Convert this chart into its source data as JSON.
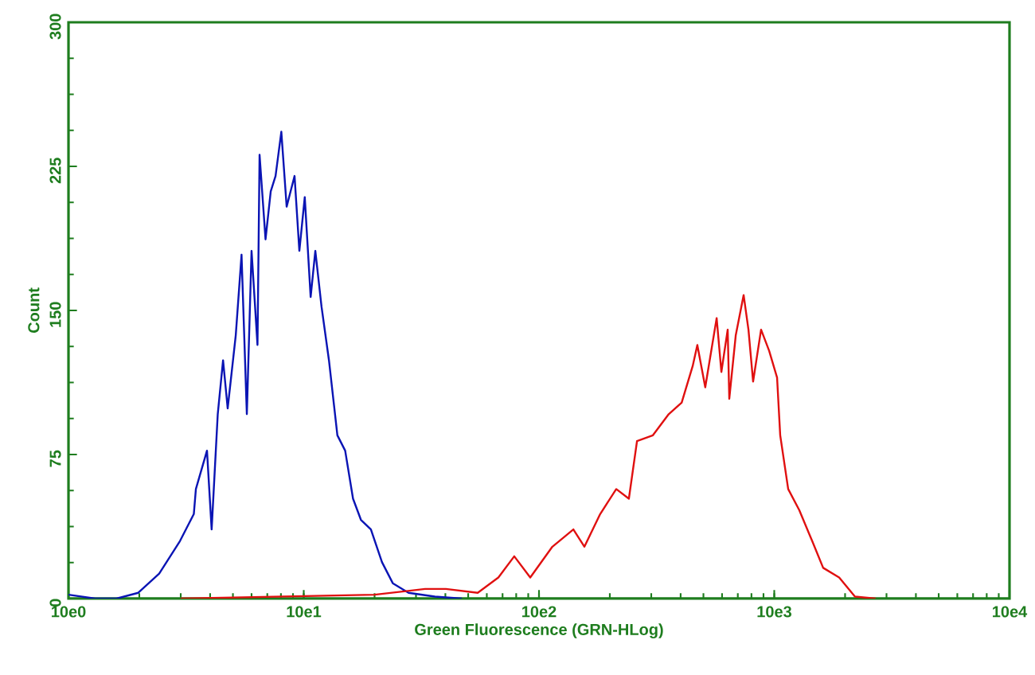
{
  "chart_data": {
    "type": "line",
    "xlabel": "Green Fluorescence (GRN-HLog)",
    "ylabel": "Count",
    "log": "x",
    "xlim": [
      10,
      100000
    ],
    "ylim": [
      0,
      300
    ],
    "xticks": [
      {
        "value": 10,
        "label": "10e0"
      },
      {
        "value": 100,
        "label": "10e1"
      },
      {
        "value": 1000,
        "label": "10e2"
      },
      {
        "value": 10000,
        "label": "10e3"
      },
      {
        "value": 100000,
        "label": "10e4"
      }
    ],
    "yticks": [
      0,
      75,
      150,
      225,
      300
    ],
    "series": [
      {
        "color": "#0a14b4",
        "x": [
          10,
          13,
          16,
          19.8,
          24.3,
          29.8,
          34.1,
          34.8,
          38.8,
          40.6,
          43.1,
          45.4,
          47.5,
          51.4,
          54.4,
          57.3,
          60.0,
          63.6,
          64.9,
          68.8,
          72.4,
          75.9,
          80.3,
          84.6,
          91.4,
          95.8,
          101,
          107,
          112,
          119,
          128,
          139,
          150,
          162,
          175,
          193,
          215,
          239,
          279,
          361,
          470
        ],
        "values": [
          2,
          0,
          0,
          3,
          13,
          30,
          44,
          57,
          77,
          36,
          96,
          124,
          99,
          137,
          179,
          96,
          181,
          132,
          231,
          187,
          212,
          220,
          243,
          204,
          220,
          181,
          209,
          157,
          181,
          152,
          124,
          85,
          77,
          52,
          41,
          36,
          19,
          8,
          3,
          1,
          0
        ]
      },
      {
        "color": "#e01010",
        "x": [
          30,
          200,
          328,
          402,
          549,
          672,
          785,
          918,
          1140,
          1400,
          1560,
          1820,
          2130,
          2410,
          2610,
          3050,
          3560,
          4040,
          4500,
          4710,
          5090,
          5690,
          5960,
          6340,
          6440,
          6860,
          7410,
          7770,
          8130,
          8790,
          9510,
          10280,
          10600,
          11460,
          12780,
          14490,
          16140,
          18880,
          22030,
          26980
        ],
        "values": [
          0,
          2,
          5,
          5,
          3,
          11,
          22,
          11,
          27,
          36,
          27,
          44,
          57,
          52,
          82,
          85,
          96,
          102,
          121,
          132,
          110,
          146,
          118,
          140,
          104,
          137,
          158,
          140,
          113,
          140,
          129,
          115,
          85,
          57,
          46,
          30,
          16,
          11,
          1,
          0
        ]
      }
    ]
  }
}
